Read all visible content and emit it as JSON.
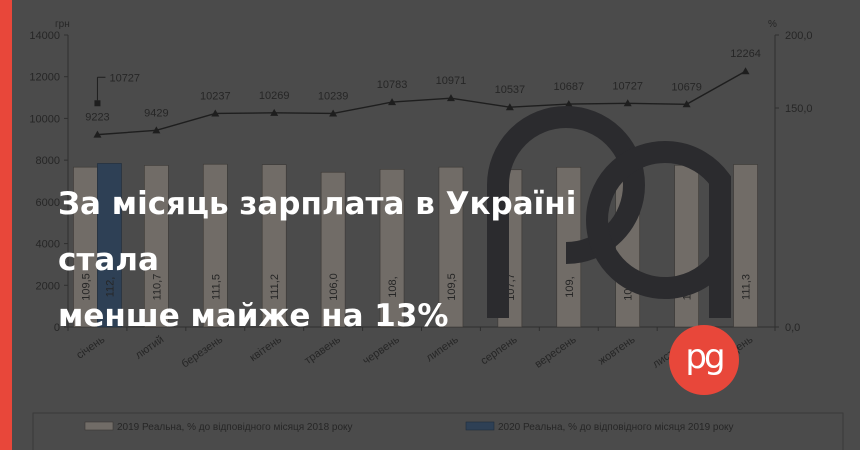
{
  "chart_data": {
    "type": "bar",
    "title": "",
    "y_left_label": "грн",
    "y_right_label": "%",
    "y_left_ticks": [
      "0",
      "2000",
      "4000",
      "6000",
      "8000",
      "10000",
      "12000",
      "14000"
    ],
    "y_left_range": [
      0,
      14000
    ],
    "y_right_ticks": [
      "0,0",
      "150,0",
      "200,0"
    ],
    "y_right_range": [
      0,
      200
    ],
    "categories": [
      "січень",
      "лютий",
      "березень",
      "квітень",
      "травень",
      "червень",
      "липень",
      "серпень",
      "вересень",
      "жовтень",
      "листопад",
      "грудень"
    ],
    "bar_series": [
      {
        "name": "2019 Реальна, % до відповідного місяця 2018 року",
        "color": "#716c67",
        "values": [
          109.5,
          110.7,
          111.5,
          111.2,
          106.0,
          108.0,
          109.5,
          107.7,
          109.4,
          109.2,
          110.8,
          111.3
        ],
        "labels": [
          "109,5",
          "110,7",
          "111,5",
          "111,2",
          "106,0",
          "108,",
          "109,5",
          "107,7",
          "109,",
          "109,2",
          "110,8",
          "111,3"
        ]
      },
      {
        "name": "2020 Реальна, % до відповідного місяця 2019 року",
        "color": "#2e4055",
        "values": [
          112.0
        ],
        "labels": [
          "112,"
        ]
      }
    ],
    "line_series": {
      "name": "2019 грн",
      "values": [
        9223,
        9429,
        10237,
        10269,
        10239,
        10783,
        10971,
        10537,
        10687,
        10727,
        10679,
        12264
      ],
      "labels": [
        "9223",
        "9429",
        "10237",
        "10269",
        "10239",
        "10783",
        "10971",
        "10537",
        "10687",
        "10727",
        "10679",
        "12264"
      ]
    },
    "extra_point": {
      "category": "січень",
      "value": 10727,
      "label": "10727"
    }
  },
  "headline": {
    "line1": "За місяць зарплата в Україні стала",
    "line2": "менше майже на 13%"
  },
  "logo": {
    "text": "pg",
    "accent_color": "#e8473a"
  }
}
